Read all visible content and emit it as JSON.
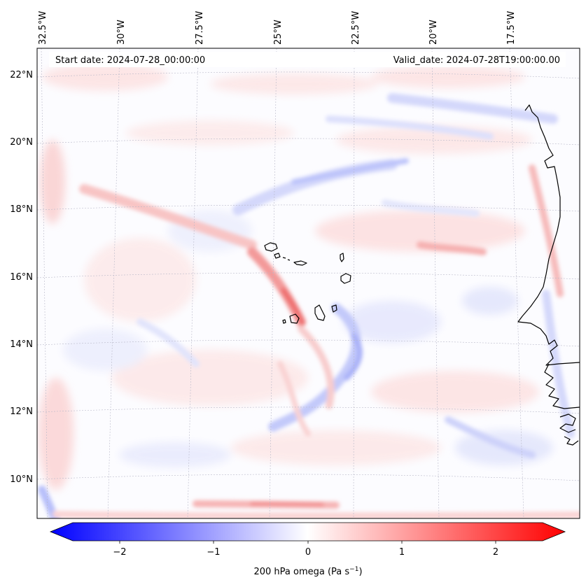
{
  "header": {
    "start_date": "Start date: 2024-07-28_00:00:00",
    "valid_date": "Valid_date: 2024-07-28T19:00:00.00"
  },
  "axes": {
    "lon_labels": [
      "32.5°W",
      "30°W",
      "27.5°W",
      "25°W",
      "22.5°W",
      "20°W",
      "17.5°W"
    ],
    "lat_labels": [
      "22°N",
      "20°N",
      "18°N",
      "16°N",
      "14°N",
      "12°N",
      "10°N"
    ]
  },
  "colorbar": {
    "tick_labels": [
      "−2",
      "−1",
      "0",
      "1",
      "2"
    ],
    "label": "200 hPa omega (Pa s",
    "label_sup": "−1",
    "label_end": ")",
    "colors": {
      "negative": "#0000ff",
      "neutral": "#ffffff",
      "positive": "#ff0000"
    }
  },
  "map": {
    "coastline_color": "#000000",
    "grid_color": "#b8b8c8"
  }
}
